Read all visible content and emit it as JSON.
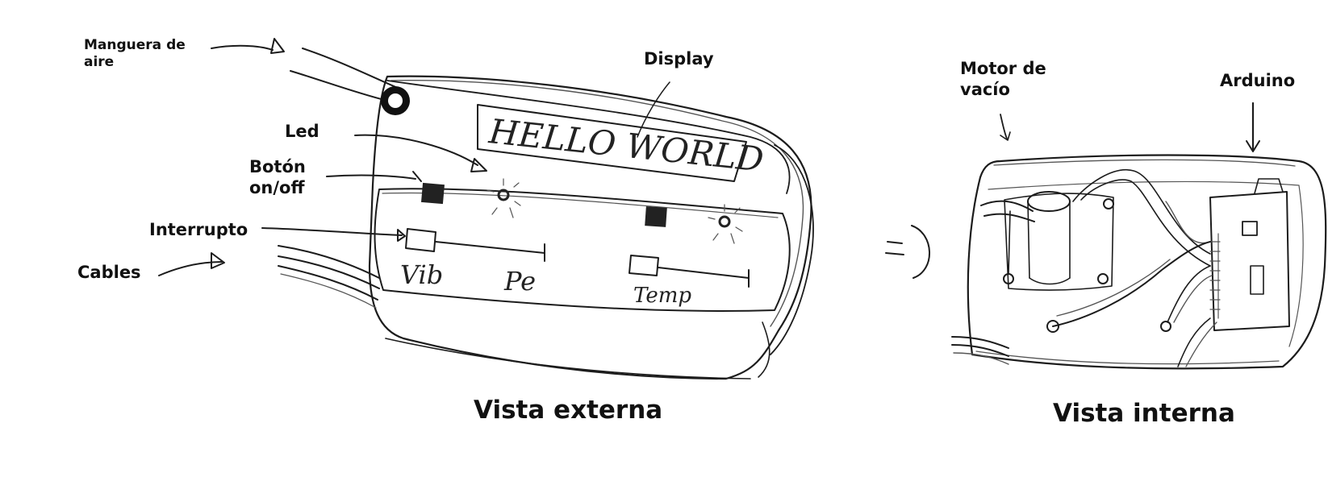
{
  "labels": {
    "manguera": "Manguera de\naire",
    "display": "Display",
    "led": "Led",
    "boton": "Botón\non/off",
    "interruptor": "Interrupto",
    "cables": "Cables",
    "motor": "Motor de\nvacío",
    "arduino": "Arduino"
  },
  "captions": {
    "external": "Vista externa",
    "internal": "Vista interna"
  },
  "device_text": {
    "display_screen": "HELLO WORLD",
    "vib": "Vib",
    "pe": "Pe",
    "temp": "Temp"
  },
  "colors": {
    "ink": "#1c1c1c",
    "background": "#ffffff"
  }
}
